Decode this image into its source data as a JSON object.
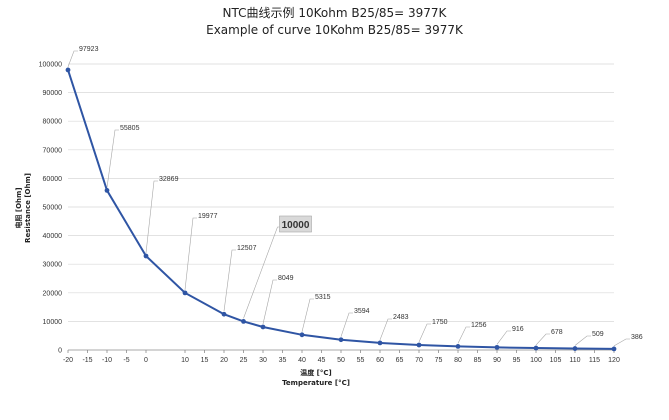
{
  "chart_data": {
    "type": "line",
    "title": "NTC曲线示例 10Kohm B25/85= 3977K",
    "subtitle": "Example of curve 10Kohm B25/85= 3977K",
    "ylabel": "电阻 [Ohm]",
    "ylabel2": "Resistance [Ohm]",
    "xlabel": "温度 [°C]",
    "xlabel2": "Temperature [°C]",
    "xlim": [
      -20,
      120
    ],
    "ylim": [
      0,
      100000
    ],
    "x_ticks": [
      -20,
      -15,
      -10,
      -5,
      0,
      10,
      15,
      20,
      25,
      30,
      35,
      40,
      45,
      50,
      55,
      60,
      65,
      70,
      75,
      80,
      85,
      90,
      95,
      100,
      105,
      110,
      115,
      120
    ],
    "y_ticks": [
      0,
      10000,
      20000,
      30000,
      40000,
      50000,
      60000,
      70000,
      80000,
      90000,
      100000
    ],
    "grid": "horizontal",
    "series": [
      {
        "color": "#2f55a4",
        "x": [
          -20,
          -10,
          0,
          10,
          20,
          25,
          30,
          40,
          50,
          60,
          70,
          80,
          90,
          100,
          110,
          120
        ],
        "values": [
          97923,
          55805,
          32869,
          19977,
          12507,
          10000,
          8049,
          5315,
          3594,
          2483,
          1750,
          1256,
          916,
          678,
          509,
          386
        ]
      }
    ],
    "data_labels": [
      "97923",
      "55805",
      "32869",
      "19977",
      "12507",
      "10000",
      "8049",
      "5315",
      "3594",
      "2483",
      "1750",
      "1256",
      "916",
      "678",
      "509",
      "386"
    ],
    "highlight_label": "10000"
  }
}
